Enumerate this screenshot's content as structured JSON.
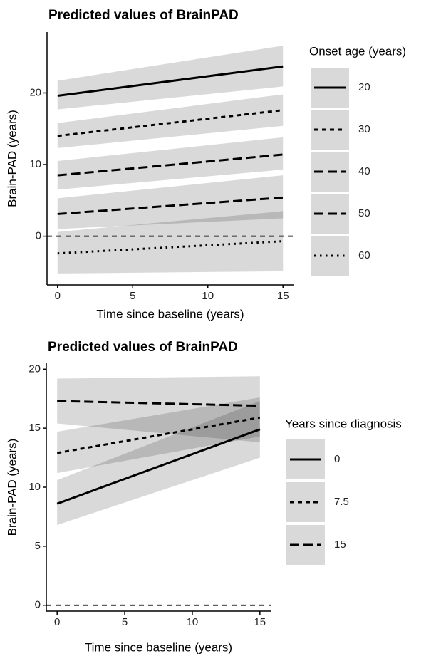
{
  "chart_data": [
    {
      "type": "line",
      "title": "Predicted values of BrainPAD",
      "x_label": "Time since baseline (years)",
      "y_label": "Brain-PAD (years)",
      "legend_title": "Onset age (years)",
      "legend": "right",
      "x": [
        0,
        15
      ],
      "xlim": [
        -0.7,
        15.7
      ],
      "xticks": [
        0,
        5,
        10,
        15
      ],
      "ylim": [
        -6.8,
        28.5
      ],
      "yticks": [
        0,
        10,
        20
      ],
      "hline": 0,
      "band_color": "#000000",
      "series": [
        {
          "name": "20",
          "color": "#000000",
          "dash": "solid",
          "values": [
            19.6,
            23.7
          ],
          "lower": [
            17.7,
            20.9
          ],
          "upper": [
            21.7,
            26.6
          ]
        },
        {
          "name": "30",
          "color": "#000000",
          "dash": "dashed",
          "values": [
            14.0,
            17.6
          ],
          "lower": [
            12.3,
            15.4
          ],
          "upper": [
            15.8,
            19.8
          ]
        },
        {
          "name": "40",
          "color": "#000000",
          "dash": "longdash",
          "values": [
            8.5,
            11.4
          ],
          "lower": [
            6.5,
            9.3
          ],
          "upper": [
            10.5,
            13.8
          ]
        },
        {
          "name": "50",
          "color": "#000000",
          "dash": "longdash",
          "values": [
            3.1,
            5.4
          ],
          "lower": [
            1.0,
            2.5
          ],
          "upper": [
            5.3,
            8.5
          ]
        },
        {
          "name": "60",
          "color": "#000000",
          "dash": "dotted",
          "values": [
            -2.4,
            -0.7
          ],
          "lower": [
            -5.2,
            -4.9
          ],
          "upper": [
            0.6,
            3.5
          ]
        }
      ]
    },
    {
      "type": "line",
      "title": "Predicted values of BrainPAD",
      "x_label": "Time since baseline (years)",
      "y_label": "Brain-PAD (years)",
      "legend_title": "Years since diagnosis",
      "legend": "right",
      "x": [
        0,
        15
      ],
      "xlim": [
        -0.8,
        15.8
      ],
      "xticks": [
        0,
        5,
        10,
        15
      ],
      "ylim": [
        -0.5,
        20.5
      ],
      "yticks": [
        0,
        5,
        10,
        15,
        20
      ],
      "hline": 0,
      "band_color": "#000000",
      "series": [
        {
          "name": "0",
          "color": "#000000",
          "dash": "solid",
          "values": [
            8.6,
            14.9
          ],
          "lower": [
            6.8,
            12.5
          ],
          "upper": [
            10.6,
            17.3
          ]
        },
        {
          "name": "7.5",
          "color": "#000000",
          "dash": "dashed",
          "values": [
            12.9,
            15.9
          ],
          "lower": [
            11.2,
            14.3
          ],
          "upper": [
            14.7,
            17.6
          ]
        },
        {
          "name": "15",
          "color": "#000000",
          "dash": "longdash",
          "values": [
            17.3,
            16.9
          ],
          "lower": [
            15.4,
            13.8
          ],
          "upper": [
            19.2,
            19.4
          ]
        }
      ]
    }
  ]
}
